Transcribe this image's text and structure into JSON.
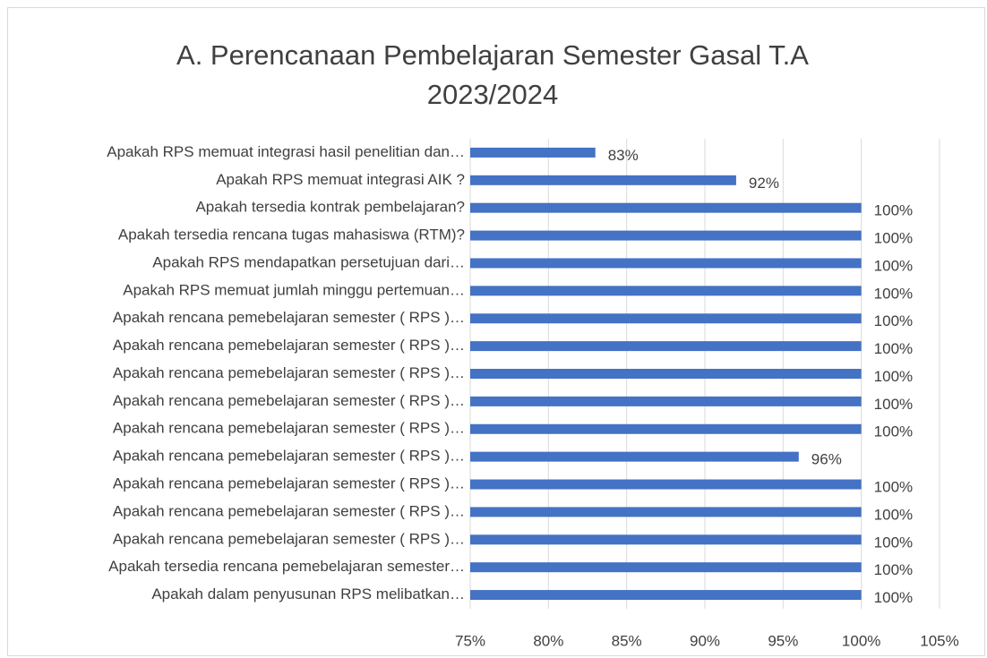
{
  "chart_data": {
    "type": "bar",
    "orientation": "horizontal",
    "title": "A. Perencanaan Pembelajaran Semester Gasal T.A 2023/2024",
    "categories": [
      "Apakah RPS memuat integrasi hasil penelitian dan…",
      "Apakah RPS memuat integrasi AIK ?",
      "Apakah tersedia kontrak pembelajaran?",
      "Apakah tersedia rencana tugas mahasiswa (RTM)?",
      "Apakah RPS mendapatkan persetujuan dari…",
      "Apakah RPS memuat jumlah minggu pertemuan…",
      "Apakah rencana pemebelajaran semester ( RPS )…",
      "Apakah rencana pemebelajaran semester ( RPS )…",
      "Apakah rencana pemebelajaran semester ( RPS )…",
      "Apakah rencana pemebelajaran semester ( RPS )…",
      "Apakah rencana pemebelajaran semester ( RPS )…",
      "Apakah rencana pemebelajaran semester ( RPS )…",
      "Apakah rencana pemebelajaran semester ( RPS )…",
      "Apakah rencana pemebelajaran semester ( RPS )…",
      "Apakah rencana pemebelajaran semester ( RPS )…",
      "Apakah tersedia rencana pemebelajaran semester…",
      "Apakah dalam penyusunan RPS melibatkan…"
    ],
    "values": [
      83,
      92,
      100,
      100,
      100,
      100,
      100,
      100,
      100,
      100,
      100,
      96,
      100,
      100,
      100,
      100,
      100
    ],
    "value_labels": [
      "83%",
      "92%",
      "100%",
      "100%",
      "100%",
      "100%",
      "100%",
      "100%",
      "100%",
      "100%",
      "100%",
      "96%",
      "100%",
      "100%",
      "100%",
      "100%",
      "100%"
    ],
    "color": "#4472c4",
    "xlim": [
      75,
      105
    ],
    "xticks": [
      {
        "value": 75,
        "label": "75%"
      },
      {
        "value": 80,
        "label": "80%"
      },
      {
        "value": 85,
        "label": "85%"
      },
      {
        "value": 90,
        "label": "90%"
      },
      {
        "value": 95,
        "label": "95%"
      },
      {
        "value": 100,
        "label": "100%"
      },
      {
        "value": 105,
        "label": "105%"
      }
    ],
    "grid": true
  }
}
